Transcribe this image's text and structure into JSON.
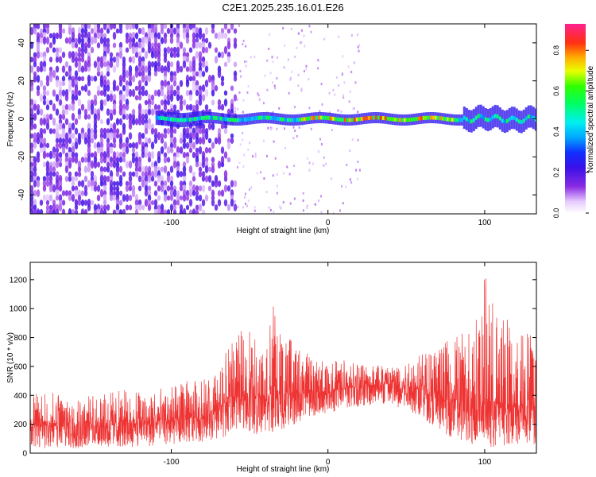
{
  "figure": {
    "title": "C2E1.2025.235.16.01.E26"
  },
  "chart_data": [
    {
      "type": "heatmap",
      "name": "spectrogram",
      "xlabel": "Height of straight line (km)",
      "ylabel": "Frequency (Hz)",
      "xlim": [
        -190,
        133
      ],
      "ylim": [
        -50,
        50
      ],
      "xticks": [
        -100,
        0,
        100
      ],
      "yticks": [
        -40,
        -20,
        0,
        20,
        40
      ],
      "colorbar": {
        "label": "Normalized spectral amplitude",
        "range": [
          0,
          0.93
        ],
        "ticks": [
          0.0,
          0.2,
          0.4,
          0.6,
          0.8
        ],
        "tick_labels": [
          "0.0",
          "0.2",
          "0.4",
          "0.6",
          "0.8"
        ]
      },
      "features": [
        {
          "region": "noise",
          "x_range": [
            -190,
            -60
          ],
          "freq_range": [
            -50,
            50
          ],
          "amplitude": 0.15
        },
        {
          "region": "central band",
          "x_range": [
            -110,
            133
          ],
          "center_freq": 0,
          "half_width_hz": 3,
          "peak_amplitude": 0.9
        }
      ]
    },
    {
      "type": "line",
      "name": "snr",
      "xlabel": "Height of straight line (km)",
      "ylabel": "SNR (10 * v/v)",
      "xlim": [
        -190,
        133
      ],
      "ylim": [
        0,
        1320
      ],
      "xticks": [
        -100,
        0,
        100
      ],
      "yticks": [
        0,
        200,
        400,
        600,
        800,
        1000,
        1200
      ],
      "series": [
        {
          "name": "SNR",
          "color": "#ee3333",
          "x": [
            -190,
            -180,
            -170,
            -160,
            -150,
            -140,
            -130,
            -120,
            -110,
            -100,
            -90,
            -80,
            -70,
            -65,
            -60,
            -55,
            -50,
            -45,
            -40,
            -35,
            -30,
            -25,
            -20,
            -15,
            -10,
            -5,
            0,
            10,
            20,
            30,
            40,
            50,
            60,
            70,
            80,
            90,
            95,
            100,
            105,
            110,
            120,
            130,
            133
          ],
          "upper": [
            400,
            430,
            410,
            420,
            400,
            430,
            440,
            440,
            450,
            460,
            500,
            520,
            560,
            700,
            800,
            850,
            900,
            800,
            850,
            1050,
            850,
            800,
            750,
            700,
            680,
            650,
            650,
            650,
            640,
            630,
            620,
            650,
            700,
            750,
            800,
            900,
            1000,
            1250,
            1100,
            1000,
            900,
            850,
            800
          ],
          "mean": [
            180,
            190,
            185,
            190,
            185,
            190,
            195,
            200,
            205,
            215,
            230,
            250,
            270,
            340,
            380,
            390,
            390,
            370,
            380,
            400,
            390,
            400,
            400,
            410,
            420,
            420,
            420,
            440,
            460,
            470,
            480,
            470,
            430,
            380,
            340,
            320,
            300,
            300,
            320,
            310,
            300,
            320,
            330
          ],
          "lower": [
            40,
            30,
            30,
            30,
            30,
            40,
            40,
            40,
            50,
            60,
            70,
            80,
            80,
            120,
            150,
            180,
            150,
            120,
            150,
            140,
            160,
            180,
            200,
            230,
            250,
            260,
            280,
            300,
            320,
            330,
            320,
            300,
            250,
            160,
            100,
            60,
            50,
            40,
            40,
            40,
            50,
            50,
            60
          ]
        }
      ]
    }
  ]
}
